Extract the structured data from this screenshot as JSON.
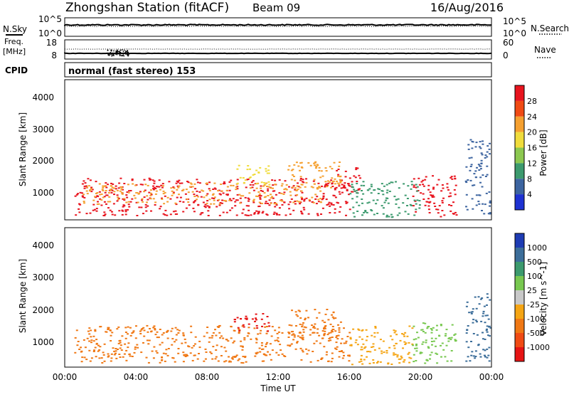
{
  "header": {
    "station": "Zhongshan Station (fitACF)",
    "beam": "Beam 09",
    "date": "16/Aug/2016"
  },
  "top_panels": {
    "noise": {
      "left_label": "N.Sky",
      "right_label": "N.Search",
      "left_ticks": [
        "10^5",
        "10^0"
      ],
      "right_ticks": [
        "10^5",
        "10^0"
      ]
    },
    "freq": {
      "left_label_1": "Freq.",
      "left_label_2": "[MHz]",
      "right_label": "Nave",
      "left_ticks": [
        "18",
        "8"
      ],
      "right_ticks": [
        "60",
        "0"
      ]
    },
    "cpid": {
      "label": "CPID",
      "mode_text": "normal (fast stereo) 153"
    }
  },
  "axes": {
    "xlabel": "Time UT",
    "ylabel": "Slant Range [km]",
    "xticks": [
      "00:00",
      "04:00",
      "08:00",
      "12:00",
      "16:00",
      "20:00",
      "00:00"
    ],
    "yticks": [
      "1000",
      "2000",
      "3000",
      "4000"
    ]
  },
  "chart_data": [
    {
      "type": "heatmap",
      "title": "Power",
      "xlabel": "Time UT",
      "ylabel": "Slant Range [km]",
      "x_range_hours": [
        0,
        24
      ],
      "y_range_km": [
        200,
        4500
      ],
      "colorbar_label": "Power [dB]",
      "colorbar_ticks": [
        "28",
        "24",
        "20",
        "16",
        "12",
        "8",
        "4"
      ],
      "colorbar_colors": [
        "#e8141e",
        "#f04a14",
        "#f5a030",
        "#f0dc3c",
        "#8cc850",
        "#3c9a6e",
        "#3c64a0",
        "#1e32d2"
      ],
      "scatter_regions": [
        {
          "t0": 0.5,
          "t1": 16.0,
          "r0": 350,
          "r1": 1500,
          "color": "#e8141e"
        },
        {
          "t0": 1.0,
          "t1": 14.5,
          "r0": 700,
          "r1": 1350,
          "color": "#f5a030"
        },
        {
          "t0": 9.5,
          "t1": 11.5,
          "r0": 1300,
          "r1": 1900,
          "color": "#f0dc3c"
        },
        {
          "t0": 12.5,
          "t1": 15.5,
          "r0": 1100,
          "r1": 2000,
          "color": "#f5a030"
        },
        {
          "t0": 15.2,
          "t1": 16.6,
          "r0": 1000,
          "r1": 1900,
          "color": "#e8141e"
        },
        {
          "t0": 19.5,
          "t1": 22.0,
          "r0": 300,
          "r1": 1600,
          "color": "#e8141e"
        },
        {
          "t0": 22.5,
          "t1": 23.9,
          "r0": 400,
          "r1": 2700,
          "color": "#3c64a0"
        },
        {
          "t0": 16.0,
          "t1": 20.0,
          "r0": 300,
          "r1": 1400,
          "color": "#3c9a6e"
        }
      ]
    },
    {
      "type": "heatmap",
      "title": "Velocity",
      "xlabel": "Time UT",
      "ylabel": "Slant Range [km]",
      "x_range_hours": [
        0,
        24
      ],
      "y_range_km": [
        200,
        4500
      ],
      "colorbar_label": "Velocity [m s^-1]",
      "colorbar_ticks": [
        "1000",
        "500",
        "100",
        "25",
        "-25",
        "-100",
        "-500",
        "-1000"
      ],
      "colorbar_colors": [
        "#1e3cb4",
        "#3c6e9a",
        "#3c9a6e",
        "#78c850",
        "#c8c8c8",
        "#f5a514",
        "#f07814",
        "#f04b14",
        "#e61414"
      ],
      "scatter_regions": [
        {
          "t0": 0.5,
          "t1": 16.0,
          "r0": 350,
          "r1": 1500,
          "color": "#f07814"
        },
        {
          "t0": 9.5,
          "t1": 11.5,
          "r0": 1300,
          "r1": 1900,
          "color": "#e61414"
        },
        {
          "t0": 12.5,
          "t1": 15.5,
          "r0": 1100,
          "r1": 2000,
          "color": "#f07814"
        },
        {
          "t0": 16.0,
          "t1": 19.5,
          "r0": 300,
          "r1": 1500,
          "color": "#f5a514"
        },
        {
          "t0": 19.5,
          "t1": 22.0,
          "r0": 300,
          "r1": 1600,
          "color": "#78c850"
        },
        {
          "t0": 22.5,
          "t1": 23.9,
          "r0": 400,
          "r1": 2500,
          "color": "#3c6e9a"
        }
      ]
    }
  ]
}
